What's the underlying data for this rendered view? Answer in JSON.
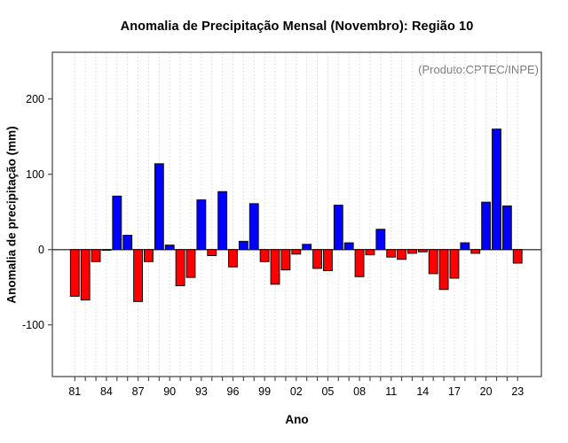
{
  "chart_data": {
    "type": "bar",
    "title": "Anomalia de Precipitação Mensal (Novembro): Região 10",
    "annotation": "(Produto:CPTEC/INPE)",
    "xlabel": "Ano",
    "ylabel": "Anomalia de precipitação (mm)",
    "years": [
      1981,
      1982,
      1983,
      1984,
      1985,
      1986,
      1987,
      1988,
      1989,
      1990,
      1991,
      1992,
      1993,
      1994,
      1995,
      1996,
      1997,
      1998,
      1999,
      2000,
      2001,
      2002,
      2003,
      2004,
      2005,
      2006,
      2007,
      2008,
      2009,
      2010,
      2011,
      2012,
      2013,
      2014,
      2015,
      2016,
      2017,
      2018,
      2019,
      2020,
      2021,
      2022,
      2023
    ],
    "values": [
      -62,
      -67,
      -16,
      -1,
      71,
      19,
      -69,
      -16,
      114,
      6,
      -48,
      -37,
      66,
      -8,
      77,
      -23,
      11,
      61,
      -16,
      -46,
      -27,
      -6,
      7,
      -25,
      -28,
      59,
      9,
      -36,
      -7,
      27,
      -10,
      -13,
      -5,
      -3,
      -32,
      -53,
      -38,
      9,
      -5,
      63,
      160,
      58,
      -18
    ],
    "x_tick_labels": [
      "81",
      "84",
      "87",
      "90",
      "93",
      "96",
      "99",
      "02",
      "05",
      "08",
      "11",
      "14",
      "17",
      "20",
      "23"
    ],
    "x_tick_label_step": 3,
    "y_ticks": [
      -100,
      0,
      100,
      200
    ],
    "ylim": [
      -168,
      262
    ],
    "grid": "vertical-dotted-per-year",
    "legend": "none",
    "colors": {
      "positive": "#0000ff",
      "negative": "#ff0000",
      "bar_border": "#111111",
      "axis": "#4d4d4d",
      "grid": "#d9d9d9",
      "annotation": "#7d7d7d",
      "text": "#000000"
    }
  }
}
